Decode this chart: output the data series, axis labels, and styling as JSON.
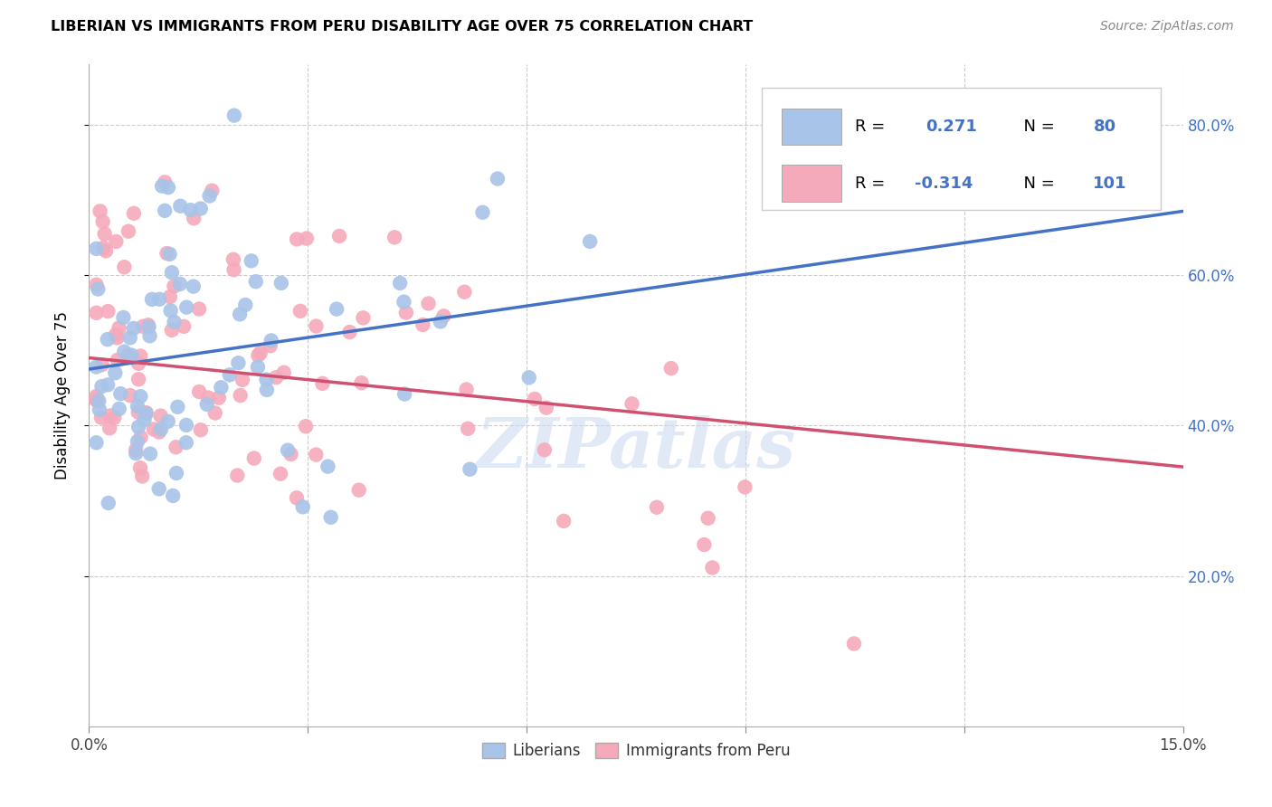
{
  "title": "LIBERIAN VS IMMIGRANTS FROM PERU DISABILITY AGE OVER 75 CORRELATION CHART",
  "source": "Source: ZipAtlas.com",
  "ylabel": "Disability Age Over 75",
  "xlabel_liberian": "Liberians",
  "xlabel_peru": "Immigrants from Peru",
  "xlim": [
    0.0,
    0.15
  ],
  "ylim": [
    0.0,
    0.88
  ],
  "xticks": [
    0.0,
    0.03,
    0.06,
    0.09,
    0.12,
    0.15
  ],
  "xtick_labels": [
    "0.0%",
    "",
    "",
    "",
    "",
    "15.0%"
  ],
  "yticks": [
    0.2,
    0.4,
    0.6,
    0.8
  ],
  "ytick_labels": [
    "20.0%",
    "40.0%",
    "60.0%",
    "80.0%"
  ],
  "R_liberian": 0.271,
  "N_liberian": 80,
  "R_peru": -0.314,
  "N_peru": 101,
  "color_liberian": "#a8c4e8",
  "color_peru": "#f5aabb",
  "color_liberian_line": "#4472c4",
  "color_peru_line": "#d05070",
  "watermark": "ZIPatlas",
  "line_lib_y0": 0.475,
  "line_lib_y1": 0.685,
  "line_peru_y0": 0.49,
  "line_peru_y1": 0.345
}
